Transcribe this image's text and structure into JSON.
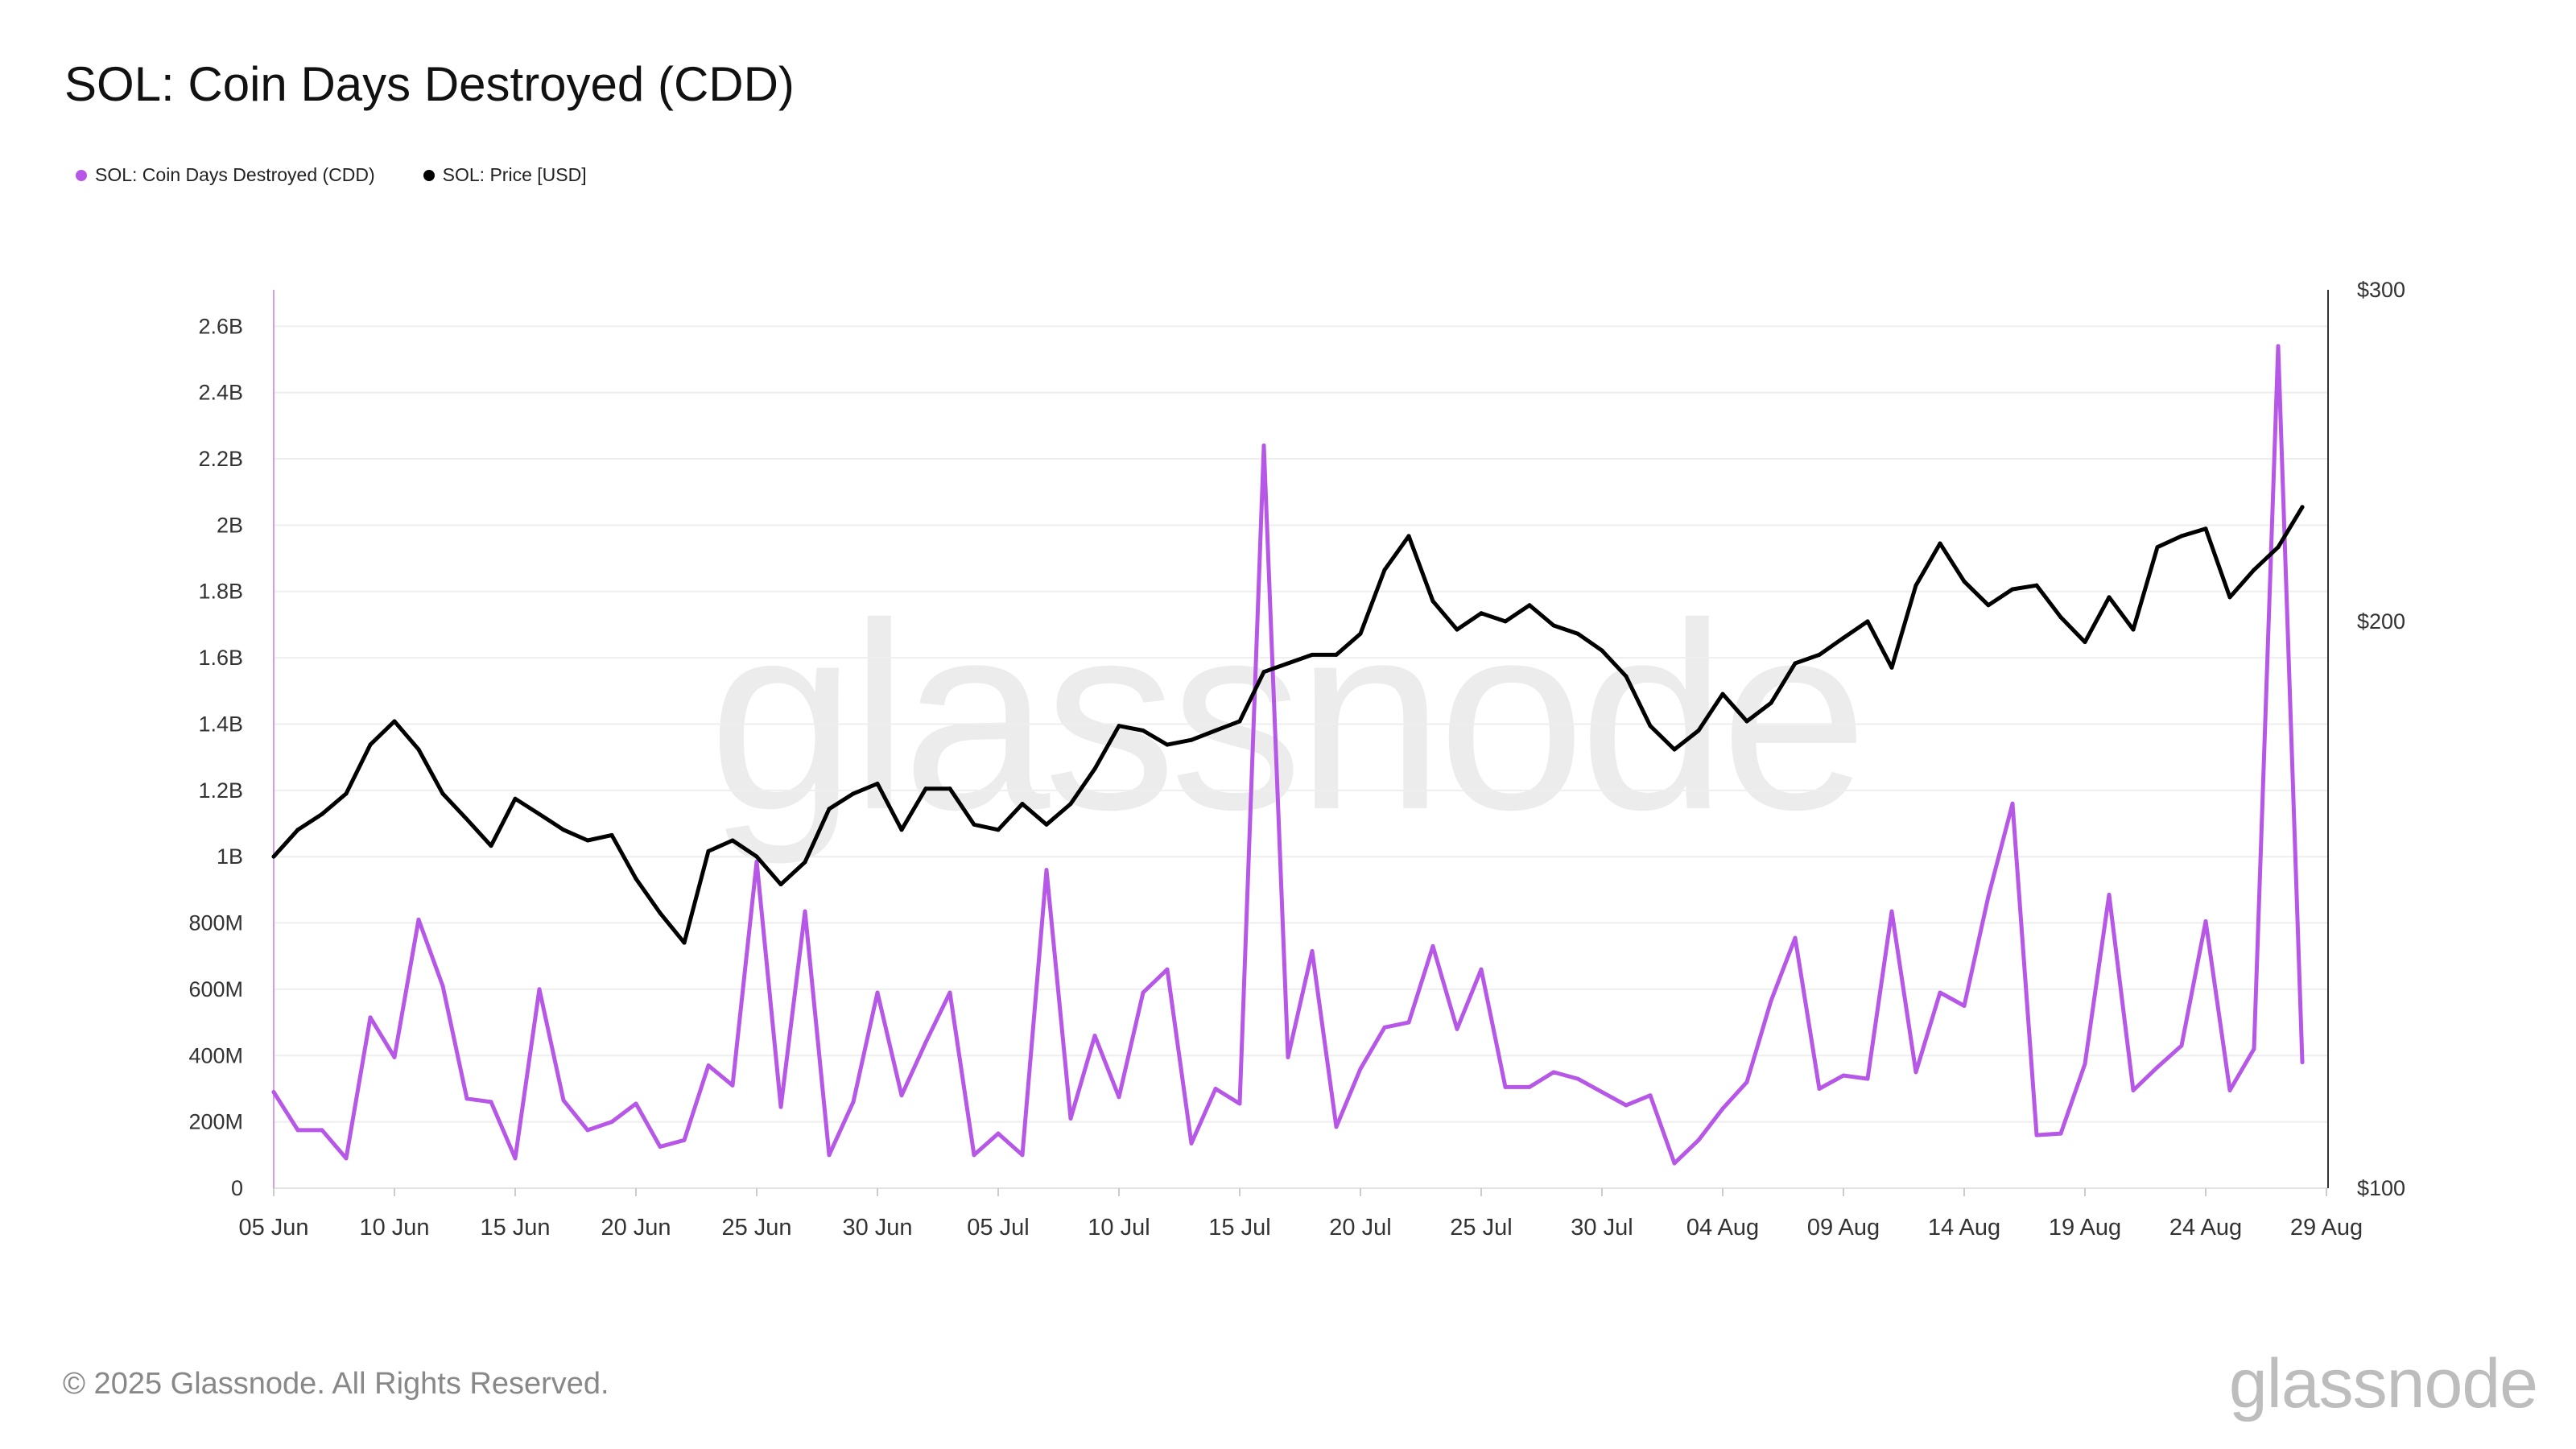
{
  "title": "SOL: Coin Days Destroyed (CDD)",
  "legend": [
    {
      "label": "SOL: Coin Days Destroyed (CDD)",
      "color": "#b657e8"
    },
    {
      "label": "SOL: Price [USD]",
      "color": "#000000"
    }
  ],
  "watermark": "glassnode",
  "footer": {
    "copyright": "© 2025 Glassnode. All Rights Reserved.",
    "logo": "glassnode"
  },
  "chart_data": {
    "type": "line",
    "x": [
      "05 Jun",
      "06 Jun",
      "07 Jun",
      "08 Jun",
      "09 Jun",
      "10 Jun",
      "11 Jun",
      "12 Jun",
      "13 Jun",
      "14 Jun",
      "15 Jun",
      "16 Jun",
      "17 Jun",
      "18 Jun",
      "19 Jun",
      "20 Jun",
      "21 Jun",
      "22 Jun",
      "23 Jun",
      "24 Jun",
      "25 Jun",
      "26 Jun",
      "27 Jun",
      "28 Jun",
      "29 Jun",
      "30 Jun",
      "01 Jul",
      "02 Jul",
      "03 Jul",
      "04 Jul",
      "05 Jul",
      "06 Jul",
      "07 Jul",
      "08 Jul",
      "09 Jul",
      "10 Jul",
      "11 Jul",
      "12 Jul",
      "13 Jul",
      "14 Jul",
      "15 Jul",
      "16 Jul",
      "17 Jul",
      "18 Jul",
      "19 Jul",
      "20 Jul",
      "21 Jul",
      "22 Jul",
      "23 Jul",
      "24 Jul",
      "25 Jul",
      "26 Jul",
      "27 Jul",
      "28 Jul",
      "29 Jul",
      "30 Jul",
      "31 Jul",
      "01 Aug",
      "02 Aug",
      "03 Aug",
      "04 Aug",
      "05 Aug",
      "06 Aug",
      "07 Aug",
      "08 Aug",
      "09 Aug",
      "10 Aug",
      "11 Aug",
      "12 Aug",
      "13 Aug",
      "14 Aug",
      "15 Aug",
      "16 Aug",
      "17 Aug",
      "18 Aug",
      "19 Aug",
      "20 Aug",
      "21 Aug",
      "22 Aug",
      "23 Aug",
      "24 Aug",
      "25 Aug",
      "26 Aug",
      "27 Aug",
      "28 Aug"
    ],
    "x_tick_labels": [
      "05 Jun",
      "10 Jun",
      "15 Jun",
      "20 Jun",
      "25 Jun",
      "30 Jun",
      "05 Jul",
      "10 Jul",
      "15 Jul",
      "20 Jul",
      "25 Jul",
      "30 Jul",
      "04 Aug",
      "09 Aug",
      "14 Aug",
      "19 Aug",
      "24 Aug",
      "29 Aug"
    ],
    "y_left": {
      "ticks": [
        0,
        200,
        400,
        600,
        800,
        1000,
        1200,
        1400,
        1600,
        1800,
        2000,
        2200,
        2400,
        2600
      ],
      "tick_labels": [
        "0",
        "200M",
        "400M",
        "600M",
        "800M",
        "1B",
        "1.2B",
        "1.4B",
        "1.6B",
        "1.8B",
        "2B",
        "2.2B",
        "2.4B",
        "2.6B"
      ],
      "range": [
        0,
        2710
      ],
      "unit": "M"
    },
    "y_right": {
      "ticks": [
        100,
        200,
        300
      ],
      "tick_labels": [
        "$100",
        "$200",
        "$300"
      ],
      "range": [
        100,
        300
      ],
      "scale": "log"
    },
    "series": [
      {
        "name": "SOL: Coin Days Destroyed (CDD)",
        "axis": "left",
        "color": "#b657e8",
        "values": [
          290,
          175,
          175,
          90,
          515,
          395,
          810,
          610,
          270,
          260,
          90,
          600,
          265,
          175,
          200,
          255,
          125,
          145,
          370,
          310,
          985,
          245,
          835,
          100,
          260,
          590,
          280,
          440,
          590,
          100,
          165,
          100,
          960,
          210,
          460,
          275,
          590,
          660,
          135,
          300,
          255,
          2240,
          395,
          715,
          185,
          360,
          485,
          500,
          730,
          480,
          660,
          305,
          305,
          350,
          330,
          290,
          250,
          280,
          75,
          145,
          240,
          320,
          565,
          755,
          300,
          340,
          330,
          835,
          350,
          590,
          550,
          880,
          1160,
          160,
          165,
          375,
          885,
          295,
          365,
          430,
          805,
          295,
          420,
          2540,
          380
        ]
      },
      {
        "name": "SOL: Price [USD]",
        "axis": "right",
        "color": "#000000",
        "values": [
          150,
          155,
          158,
          162,
          172,
          177,
          171,
          162,
          157,
          152,
          161,
          158,
          155,
          153,
          154,
          146,
          140,
          135,
          151,
          153,
          150,
          145,
          149,
          159,
          162,
          164,
          155,
          163,
          163,
          156,
          155,
          160,
          156,
          160,
          167,
          176,
          175,
          172,
          173,
          175,
          177,
          188,
          190,
          192,
          192,
          197,
          213,
          222,
          205,
          198,
          202,
          200,
          204,
          199,
          197,
          193,
          187,
          176,
          171,
          175,
          183,
          177,
          181,
          190,
          192,
          196,
          200,
          189,
          209,
          220,
          210,
          204,
          208,
          209,
          201,
          195,
          206,
          198,
          219,
          222,
          224,
          206,
          213,
          219,
          230
        ]
      }
    ]
  }
}
